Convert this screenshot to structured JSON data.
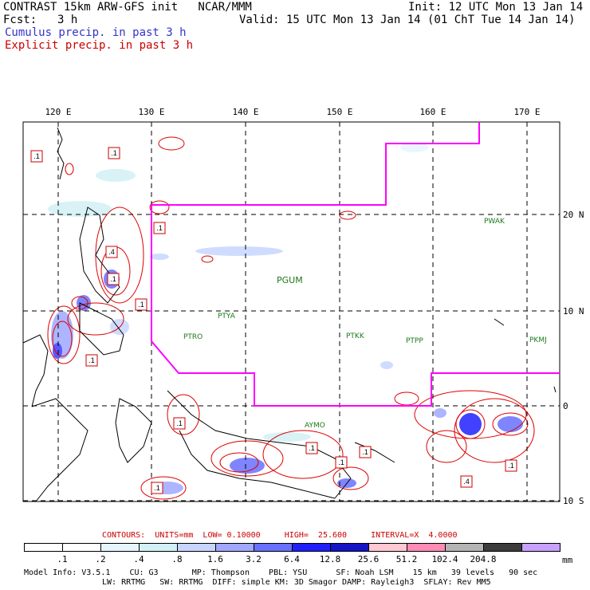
{
  "header": {
    "title": "CONTRAST 15km ARW-GFS init   NCAR/MMM",
    "init": "Init: 12 UTC Mon 13 Jan 14",
    "fcst_label": "Fcst:",
    "fcst_value": "3 h",
    "valid": "Valid: 15 UTC Mon 13 Jan 14 (01 ChT Tue 14 Jan 14)",
    "cumulus": "Cumulus precip. in past 3 h",
    "explicit": "Explicit precip. in past 3 h"
  },
  "colors": {
    "cumulus_text": "#3333cc",
    "explicit_text": "#cc0000",
    "domain_line": "#ff00ff",
    "coast": "#000000",
    "station": "#1a7a1a"
  },
  "map": {
    "lon_labels": [
      "120 E",
      "130 E",
      "140 E",
      "150 E",
      "160 E",
      "170 E"
    ],
    "lat_labels": [
      "20 N",
      "10 N",
      "0",
      "10 S"
    ],
    "stations": [
      "PWAK",
      "PGUM",
      "PTYA",
      "PTRO",
      "PTKK",
      "PTPP",
      "PKMJ",
      "AYMO"
    ],
    "max_labels": [
      ".1",
      ".1",
      ".1",
      ".4",
      ".1",
      ".1",
      ".1",
      ".1",
      ".1",
      ".1",
      ".1",
      ".1",
      ".4",
      ".1"
    ]
  },
  "contours_line": "CONTOURS:  UNITS=mm  LOW= 0.10000     HIGH=  25.600     INTERVAL=X  4.0000",
  "colorbar": {
    "labels": [
      ".1",
      ".2",
      ".4",
      ".8",
      "1.6",
      "3.2",
      "6.4",
      "12.8",
      "25.6",
      "51.2",
      "102.4",
      "204.8"
    ],
    "unit": "mm",
    "colors": [
      "#ffffff",
      "#ffffff",
      "#e6f4ff",
      "#d2f0f5",
      "#c8d6ff",
      "#a0a8ff",
      "#6870ff",
      "#2020ff",
      "#1414c8",
      "#ffc8d2",
      "#ff8cb4",
      "#b4b4b4",
      "#3c3c3c",
      "#c8a0ff"
    ]
  },
  "footer": {
    "line1": "Model Info: V3.5.1    CU: G3       MP: Thompson    PBL: YSU      SF: Noah LSM    15 km   39 levels   90 sec",
    "line2": "LW: RRTMG   SW: RRTMG  DIFF: simple KM: 3D Smagor DAMP: Rayleigh3  SFLAY: Rev MM5"
  }
}
